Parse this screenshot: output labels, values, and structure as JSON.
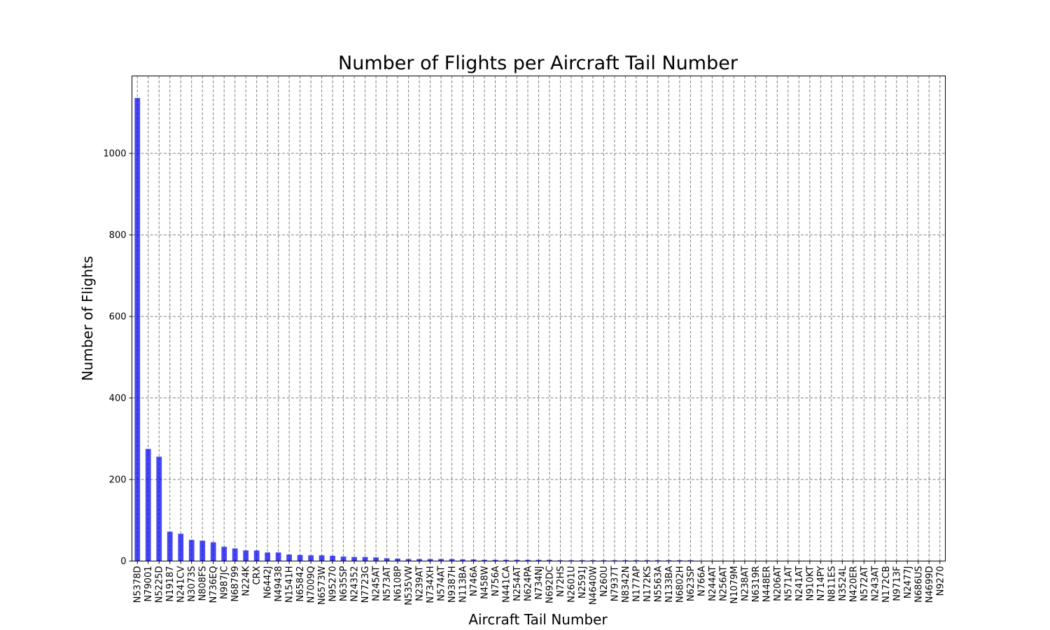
{
  "chart_data": {
    "type": "bar",
    "title": "Number of Flights per Aircraft Tail Number",
    "xlabel": "Aircraft Tail Number",
    "ylabel": "Number of Flights",
    "ylim": [
      0,
      1190
    ],
    "yticks": [
      0,
      200,
      400,
      600,
      800,
      1000
    ],
    "grid": true,
    "bar_color": "#0000ee",
    "categories": [
      "N5378D",
      "N79001",
      "N5225D",
      "N19187",
      "N241CV",
      "N3073S",
      "N808FS",
      "N736EQ",
      "N987JC",
      "N68799",
      "N224K",
      "CRX",
      "N6442J",
      "N49438",
      "N1541H",
      "N65842",
      "N7009Q",
      "N6573W",
      "N95270",
      "N635SP",
      "N24352",
      "N7723G",
      "N245AT",
      "N573AT",
      "N6108P",
      "N535VW",
      "N239AT",
      "N734XH",
      "N574AT",
      "N9387H",
      "N113BA",
      "N746A",
      "N458W",
      "N756A",
      "N441CA",
      "N254AT",
      "N624PA",
      "N734NJ",
      "N692DC",
      "N72HS",
      "N2601U",
      "N2591J",
      "N4640W",
      "N260U",
      "N7937T",
      "N8342N",
      "N177AP",
      "N172KS",
      "N5563A",
      "N133BA",
      "N6802H",
      "N623SP",
      "N766A",
      "N244AT",
      "N256AT",
      "N1079M",
      "N238AT",
      "N6319R",
      "N448ER",
      "N206AT",
      "N571AT",
      "N241AT",
      "N910KT",
      "N714PY",
      "N811ES",
      "N3524L",
      "N420ER",
      "N572AT",
      "N243AT",
      "N172CB",
      "N9713F",
      "N2477J",
      "N686US",
      "N4699D",
      "N9270"
    ],
    "values": [
      1136,
      275,
      256,
      72,
      67,
      52,
      50,
      46,
      35,
      31,
      26,
      26,
      21,
      21,
      16,
      15,
      14,
      14,
      13,
      11,
      10,
      10,
      9,
      7,
      6,
      5,
      5,
      5,
      5,
      5,
      4,
      4,
      3,
      3,
      3,
      3,
      3,
      3,
      3,
      2,
      2,
      2,
      2,
      2,
      2,
      2,
      2,
      2,
      2,
      2,
      2,
      2,
      1,
      1,
      1,
      1,
      1,
      1,
      1,
      1,
      1,
      1,
      1,
      1,
      1,
      1,
      1,
      1,
      1,
      1,
      1,
      1,
      1,
      1,
      1
    ]
  }
}
